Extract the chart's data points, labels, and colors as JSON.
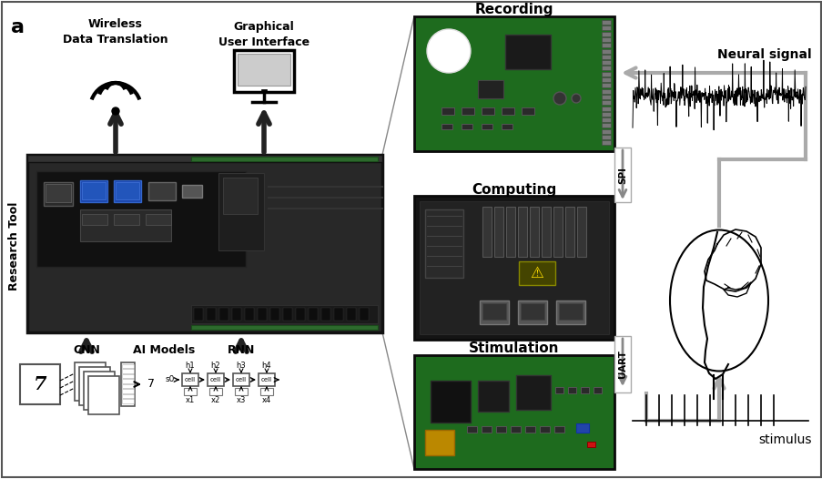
{
  "title_label": "a",
  "bg_color": "#ffffff",
  "left_label": "Research Tool",
  "top_left_text1": "Wireless\nData Translation",
  "top_left_text2": "Graphical\nUser Interface",
  "ai_models_text": "AI Models",
  "cnn_text": "CNN",
  "rnn_text": "RNN",
  "recording_text": "Recording",
  "computing_text": "Computing",
  "stimulation_text": "Stimulation",
  "neural_signal_text": "Neural signal",
  "stimulus_text": "stimulus",
  "spi_text": "SPI",
  "uart_text": "UART",
  "fig_width": 9.04,
  "fig_height": 5.26
}
